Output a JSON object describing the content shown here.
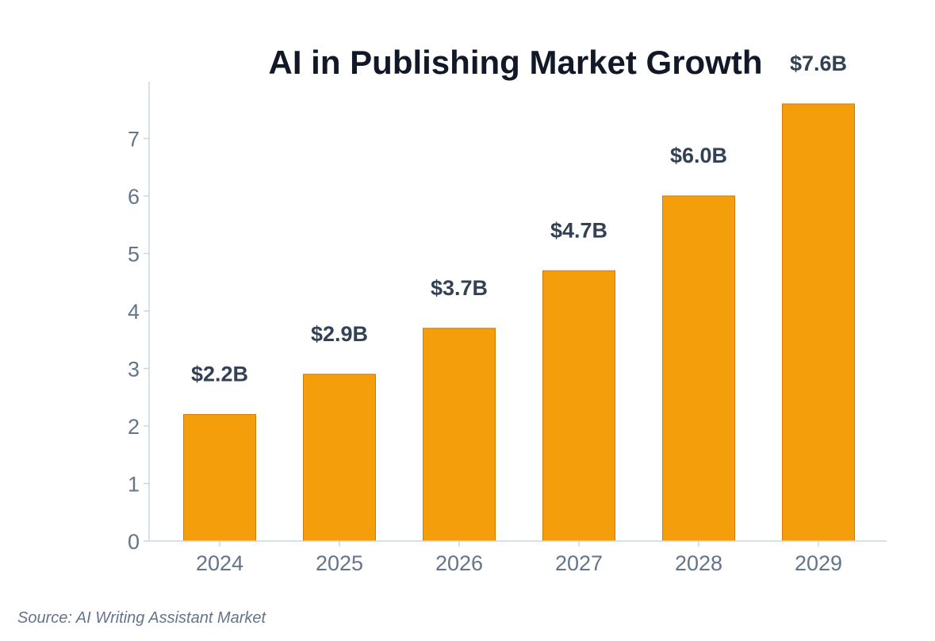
{
  "chart_data": {
    "type": "bar",
    "title": "AI in Publishing Market Growth",
    "categories": [
      "2024",
      "2025",
      "2026",
      "2027",
      "2028",
      "2029"
    ],
    "values": [
      2.2,
      2.9,
      3.7,
      4.7,
      6.0,
      7.6
    ],
    "data_labels": [
      "$2.2B",
      "$2.9B",
      "$3.7B",
      "$4.7B",
      "$6.0B",
      "$7.6B"
    ],
    "xlabel": "",
    "ylabel": "",
    "ylim": [
      0,
      8
    ],
    "yticks": [
      "0",
      "1",
      "2",
      "3",
      "4",
      "5",
      "6",
      "7"
    ],
    "grid": false,
    "bar_color": "#f59e0b",
    "bar_edge_color": "#d97706"
  },
  "source": "Source: AI Writing Assistant Market"
}
